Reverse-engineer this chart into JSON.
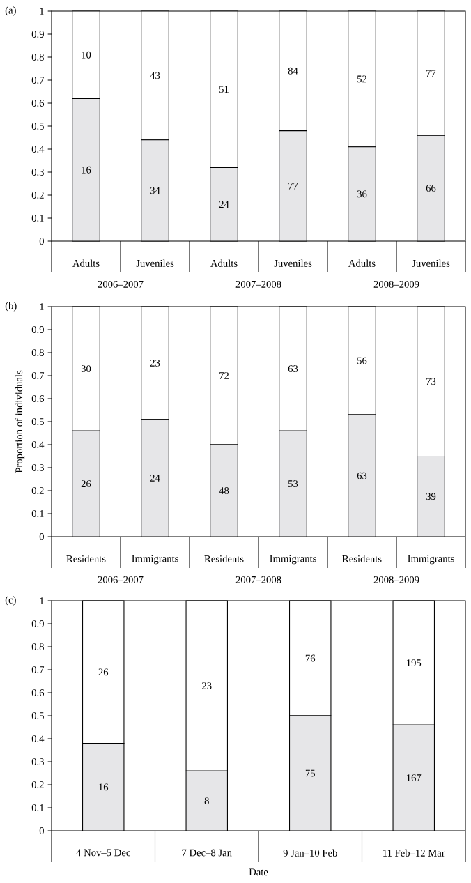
{
  "chart_data": [
    {
      "type": "bar",
      "title": "(a)",
      "stacked": true,
      "categories": [
        "Adults",
        "Juveniles",
        "Adults",
        "Juveniles",
        "Adults",
        "Juveniles"
      ],
      "ylim": [
        0,
        1
      ],
      "yticks": [
        0,
        0.1,
        0.2,
        0.3,
        0.4,
        0.5,
        0.6,
        0.7,
        0.8,
        0.9,
        1
      ],
      "annotations": [
        "16",
        "10",
        "34",
        "43",
        "24",
        "51",
        "77",
        "84",
        "36",
        "52",
        "66",
        "77",
        "2006–2007",
        "2007–2008",
        "2008–2009"
      ],
      "series": [
        {
          "color": "#e6e6e8",
          "values": [
            0.62,
            0.44,
            0.32,
            0.48,
            0.41,
            0.46
          ]
        },
        {
          "color": "#ffffff",
          "values": [
            0.38,
            0.56,
            0.68,
            0.52,
            0.59,
            0.54
          ]
        }
      ]
    },
    {
      "type": "bar",
      "title": "(b)",
      "ylabel": "Proportion of individuals",
      "stacked": true,
      "categories": [
        "Residents",
        "Immigrants",
        "Residents",
        "Immigrants",
        "Residents",
        "Immigrants"
      ],
      "ylim": [
        0,
        1
      ],
      "yticks": [
        0,
        0.1,
        0.2,
        0.3,
        0.4,
        0.5,
        0.6,
        0.7,
        0.8,
        0.9,
        1
      ],
      "annotations": [
        "26",
        "30",
        "24",
        "23",
        "48",
        "72",
        "53",
        "63",
        "63",
        "56",
        "39",
        "73",
        "2006–2007",
        "2007–2008",
        "2008–2009"
      ],
      "series": [
        {
          "color": "#e6e6e8",
          "values": [
            0.46,
            0.51,
            0.4,
            0.46,
            0.53,
            0.35
          ]
        },
        {
          "color": "#ffffff",
          "values": [
            0.54,
            0.49,
            0.6,
            0.54,
            0.47,
            0.65
          ]
        }
      ]
    },
    {
      "type": "bar",
      "title": "(c)",
      "xlabel": "Date",
      "stacked": true,
      "categories": [
        "4 Nov–5 Dec",
        "7 Dec–8 Jan",
        "9 Jan–10 Feb",
        "11 Feb–12 Mar"
      ],
      "ylim": [
        0,
        1
      ],
      "yticks": [
        0,
        0.1,
        0.2,
        0.3,
        0.4,
        0.5,
        0.6,
        0.7,
        0.8,
        0.9,
        1
      ],
      "annotations": [
        "16",
        "26",
        "8",
        "23",
        "75",
        "76",
        "167",
        "195"
      ],
      "series": [
        {
          "color": "#e6e6e8",
          "values": [
            0.38,
            0.26,
            0.5,
            0.46
          ]
        },
        {
          "color": "#ffffff",
          "values": [
            0.62,
            0.74,
            0.5,
            0.54
          ]
        }
      ]
    }
  ]
}
